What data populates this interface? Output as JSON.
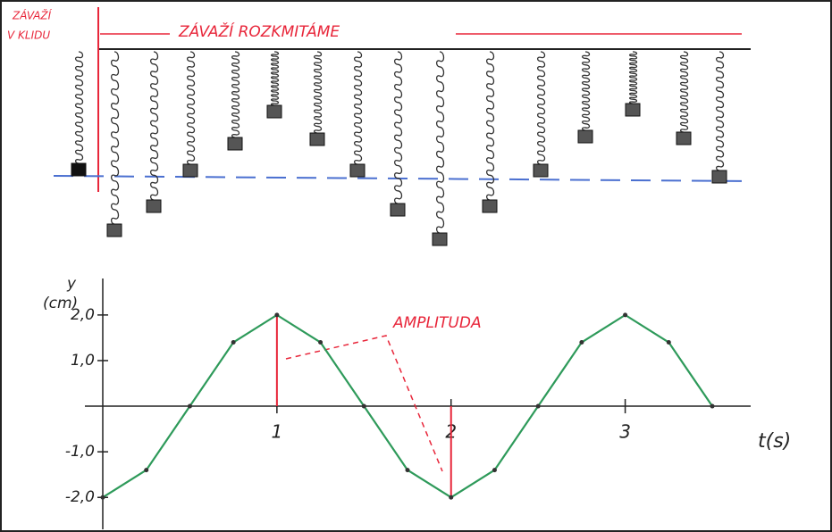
{
  "labels": {
    "rest": [
      "ZÁVAŽÍ",
      "V KLIDU"
    ],
    "swing": "ZÁVAŽÍ ROZKMITÁME"
  },
  "chart_data": {
    "type": "line",
    "ylabel": "y",
    "yunit": "(cm)",
    "xlabel": "t(s)",
    "annotation": "AMPLITUDA",
    "x": [
      0,
      0.25,
      0.5,
      0.75,
      1,
      1.25,
      1.5,
      1.75,
      2,
      2.25,
      2.5,
      2.75,
      3,
      3.25,
      3.5
    ],
    "series": [
      {
        "color": "#2e9a5a",
        "values": [
          -2,
          -1.4,
          0,
          1.4,
          2,
          1.4,
          0,
          -1.4,
          -2,
          -1.4,
          0,
          1.4,
          2,
          1.4,
          0
        ]
      }
    ],
    "xlim": [
      0,
      3.7
    ],
    "ylim": [
      -2.7,
      2.8
    ],
    "xticks": [
      1,
      2,
      3
    ],
    "yticks": [
      {
        "value": 2,
        "label": "2,0"
      },
      {
        "value": 1,
        "label": "1,0"
      },
      {
        "value": -1,
        "label": "-1,0"
      },
      {
        "value": -2,
        "label": "-2,0"
      }
    ]
  }
}
